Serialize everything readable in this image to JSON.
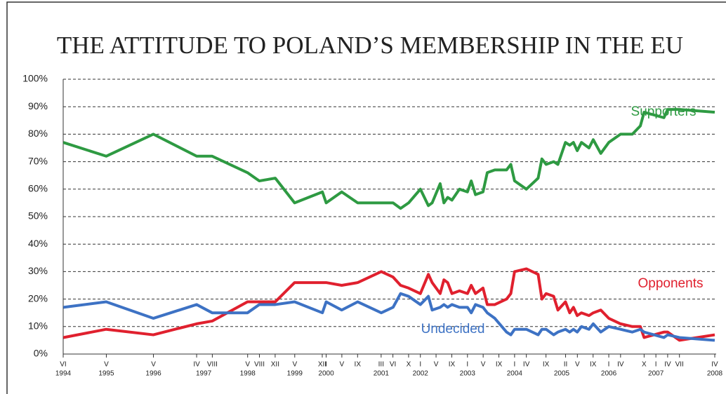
{
  "chart_data": {
    "type": "line",
    "title": "THE ATTITUDE TO POLAND’S MEMBERSHIP IN THE EU",
    "x": [
      1994.42,
      1995.33,
      1996.33,
      1997.25,
      1997.58,
      1998.33,
      1998.58,
      1998.92,
      1999.33,
      1999.92,
      2000.0,
      2000.33,
      2000.67,
      2001.17,
      2001.42,
      2001.58,
      2001.75,
      2002.0,
      2002.17,
      2002.25,
      2002.42,
      2002.5,
      2002.58,
      2002.67,
      2002.83,
      2003.0,
      2003.08,
      2003.17,
      2003.33,
      2003.42,
      2003.58,
      2003.83,
      2003.92,
      2004.0,
      2004.25,
      2004.5,
      2004.58,
      2004.67,
      2004.83,
      2004.92,
      2005.08,
      2005.17,
      2005.25,
      2005.33,
      2005.42,
      2005.58,
      2005.67,
      2005.83,
      2006.0,
      2006.25,
      2006.5,
      2006.67,
      2006.75,
      2007.17,
      2007.25,
      2007.5,
      2008.25
    ],
    "series": [
      {
        "name": "Supporters",
        "color": "#2e9a42",
        "values": [
          77,
          72,
          80,
          72,
          72,
          66,
          63,
          64,
          55,
          59,
          55,
          59,
          55,
          55,
          55,
          53,
          55,
          60,
          54,
          55,
          62,
          55,
          57,
          56,
          60,
          59,
          63,
          58,
          59,
          66,
          67,
          67,
          69,
          63,
          60,
          64,
          71,
          69,
          70,
          69,
          77,
          76,
          77,
          74,
          77,
          75,
          78,
          73,
          77,
          80,
          80,
          83,
          88,
          86,
          89,
          89,
          88
        ]
      },
      {
        "name": "Opponents",
        "color": "#e0202e",
        "values": [
          6,
          9,
          7,
          11,
          12,
          19,
          19,
          19,
          26,
          26,
          26,
          25,
          26,
          30,
          28,
          25,
          24,
          22,
          29,
          26,
          22,
          27,
          26,
          22,
          23,
          22,
          25,
          22,
          24,
          18,
          18,
          20,
          22,
          30,
          31,
          29,
          20,
          22,
          21,
          16,
          19,
          15,
          17,
          14,
          15,
          14,
          15,
          16,
          13,
          11,
          10,
          10,
          6,
          8,
          8,
          5,
          7
        ]
      },
      {
        "name": "Undecided",
        "color": "#3d72c4",
        "values": [
          17,
          19,
          13,
          18,
          15,
          15,
          18,
          18,
          19,
          15,
          19,
          16,
          19,
          15,
          17,
          22,
          21,
          18,
          21,
          16,
          17,
          18,
          17,
          18,
          17,
          17,
          15,
          18,
          17,
          15,
          13,
          8,
          7,
          9,
          9,
          7,
          9,
          9,
          7,
          8,
          9,
          8,
          9,
          8,
          10,
          9,
          11,
          8,
          10,
          9,
          8,
          9,
          8,
          6,
          7,
          6,
          5
        ]
      }
    ],
    "xlim": [
      1994.417,
      2008.25
    ],
    "xticks": [
      {
        "value": 1994.417,
        "label": "VI"
      },
      {
        "value": 1995.333,
        "label": "V"
      },
      {
        "value": 1996.333,
        "label": "V"
      },
      {
        "value": 1997.25,
        "label": "IV"
      },
      {
        "value": 1997.583,
        "label": "VIII"
      },
      {
        "value": 1998.333,
        "label": "V"
      },
      {
        "value": 1998.583,
        "label": "VIII"
      },
      {
        "value": 1998.917,
        "label": "XII"
      },
      {
        "value": 1999.333,
        "label": "V"
      },
      {
        "value": 1999.917,
        "label": "XII"
      },
      {
        "value": 2000.0,
        "label": "I"
      },
      {
        "value": 2000.333,
        "label": "V"
      },
      {
        "value": 2000.667,
        "label": "IX"
      },
      {
        "value": 2001.167,
        "label": "III"
      },
      {
        "value": 2001.417,
        "label": "VI"
      },
      {
        "value": 2001.75,
        "label": "X"
      },
      {
        "value": 2002.0,
        "label": "I"
      },
      {
        "value": 2002.333,
        "label": "V"
      },
      {
        "value": 2002.667,
        "label": "IX"
      },
      {
        "value": 2003.0,
        "label": "I"
      },
      {
        "value": 2003.333,
        "label": "V"
      },
      {
        "value": 2003.667,
        "label": "IX"
      },
      {
        "value": 2004.0,
        "label": "I"
      },
      {
        "value": 2004.25,
        "label": "IV"
      },
      {
        "value": 2004.667,
        "label": "IX"
      },
      {
        "value": 2005.083,
        "label": "II"
      },
      {
        "value": 2005.333,
        "label": "V"
      },
      {
        "value": 2005.667,
        "label": "IX"
      },
      {
        "value": 2006.0,
        "label": "I"
      },
      {
        "value": 2006.25,
        "label": "IV"
      },
      {
        "value": 2006.75,
        "label": "X"
      },
      {
        "value": 2007.0,
        "label": "I"
      },
      {
        "value": 2007.25,
        "label": "IV"
      },
      {
        "value": 2007.5,
        "label": "VII"
      },
      {
        "value": 2008.25,
        "label": "IV"
      }
    ],
    "year_labels": [
      {
        "value": 1994.417,
        "label": "1994"
      },
      {
        "value": 1995.333,
        "label": "1995"
      },
      {
        "value": 1996.333,
        "label": "1996"
      },
      {
        "value": 1997.4,
        "label": "1997"
      },
      {
        "value": 1998.333,
        "label": "1998"
      },
      {
        "value": 1999.333,
        "label": "1999"
      },
      {
        "value": 2000.0,
        "label": "2000"
      },
      {
        "value": 2001.167,
        "label": "2001"
      },
      {
        "value": 2002.0,
        "label": "2002"
      },
      {
        "value": 2003.0,
        "label": "2003"
      },
      {
        "value": 2004.0,
        "label": "2004"
      },
      {
        "value": 2005.0,
        "label": "2005"
      },
      {
        "value": 2006.0,
        "label": "2006"
      },
      {
        "value": 2007.0,
        "label": "2007"
      },
      {
        "value": 2008.25,
        "label": "2008"
      }
    ],
    "ylim": [
      0,
      100
    ],
    "yticks": [
      {
        "value": 0,
        "label": "0%"
      },
      {
        "value": 10,
        "label": "10%"
      },
      {
        "value": 20,
        "label": "20%"
      },
      {
        "value": 30,
        "label": "30%"
      },
      {
        "value": 40,
        "label": "40%"
      },
      {
        "value": 50,
        "label": "50%"
      },
      {
        "value": 60,
        "label": "60%"
      },
      {
        "value": 70,
        "label": "70%"
      },
      {
        "value": 80,
        "label": "80%"
      },
      {
        "value": 90,
        "label": "90%"
      },
      {
        "value": 100,
        "label": "100%"
      }
    ],
    "grid": true
  }
}
